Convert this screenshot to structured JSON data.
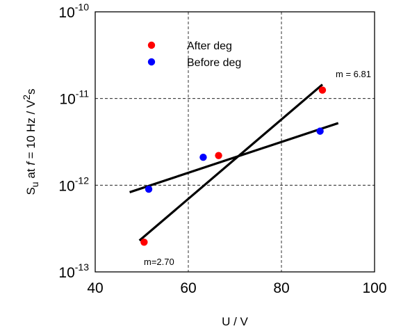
{
  "chart_data": {
    "type": "scatter",
    "xlabel": "U / V",
    "ylabel": {
      "pre": "S",
      "sub": "u",
      "mid1": " at ",
      "ital": "f",
      "mid2": " = 10 Hz  / V",
      "sup": "2",
      "post": "s"
    },
    "x_ticks": [
      "40",
      "60",
      "80",
      "100"
    ],
    "y_ticks": [
      {
        "base": "10",
        "exp": "-10"
      },
      {
        "base": "10",
        "exp": "-11"
      },
      {
        "base": "10",
        "exp": "-12"
      },
      {
        "base": "10",
        "exp": "-13"
      }
    ],
    "xlim": [
      40,
      100
    ],
    "ylim": [
      1e-13,
      1e-10
    ],
    "yscale": "log",
    "grid": true,
    "legend_position": "top-left",
    "colors": {
      "after": "#ff0000",
      "before": "#0000ff",
      "fit": "#000000"
    },
    "series": [
      {
        "name": "After deg",
        "color": "#ff0000",
        "x": [
          50.5,
          66.5,
          88.8
        ],
        "y": [
          2.2e-13,
          2.2e-12,
          1.25e-11
        ]
      },
      {
        "name": "Before deg",
        "color": "#0000ff",
        "x": [
          51.5,
          63.2,
          88.3
        ],
        "y": [
          9e-13,
          2.1e-12,
          4.2e-12
        ]
      }
    ],
    "fits": [
      {
        "label": "m = 6.81",
        "x": [
          49.5,
          88.8
        ],
        "y": [
          2.3e-13,
          1.45e-11
        ]
      },
      {
        "label": "m=2.70",
        "x": [
          47.4,
          92.2
        ],
        "y": [
          8.3e-13,
          5.2e-12
        ]
      }
    ]
  }
}
